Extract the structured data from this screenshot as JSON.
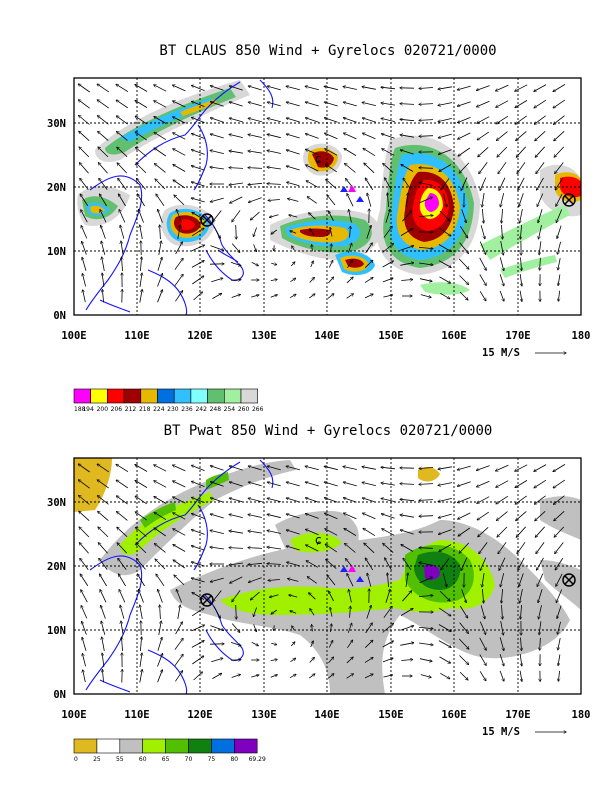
{
  "panels": [
    {
      "id": "claus",
      "title": "BT CLAUS 850 Wind + Gyrelocs 020721/0000",
      "colorbar_labels": [
        "188",
        "194",
        "200",
        "206",
        "212",
        "218",
        "224",
        "230",
        "236",
        "242",
        "248",
        "254",
        "260",
        "266"
      ],
      "colorbar_colors": [
        "#ff00ff",
        "#ffff00",
        "#ff0000",
        "#a00000",
        "#e8b800",
        "#0070e0",
        "#30c0ff",
        "#80ffff",
        "#60c070",
        "#a0f0a0",
        "#d8d8d8"
      ]
    },
    {
      "id": "pwat",
      "title": "BT Pwat 850 Wind + Gyrelocs 020721/0000",
      "colorbar_labels": [
        "0",
        "25",
        "55",
        "60",
        "65",
        "70",
        "75",
        "80",
        "69.29"
      ],
      "colorbar_colors": [
        "#e0b820",
        "#ffffff",
        "#c0c0c0",
        "#a0f000",
        "#50c000",
        "#108010",
        "#0070e0",
        "#8000c0"
      ]
    }
  ],
  "axes": {
    "x_ticks": [
      "100E",
      "110E",
      "120E",
      "130E",
      "140E",
      "150E",
      "160E",
      "170E",
      "180"
    ],
    "y_ticks": [
      "0N",
      "10N",
      "20N",
      "30N"
    ],
    "lon_range": [
      100,
      180
    ],
    "lat_range": [
      0,
      37
    ],
    "vector_scale_label": "15 M/S"
  },
  "markers": {
    "gyre_center": {
      "lon": 120,
      "lat": 14.5
    },
    "gyre_center_east": {
      "lon": 178,
      "lat": 18
    },
    "typhoon_symbols": [
      {
        "lon": 139,
        "lat": 24
      },
      {
        "lon": 156,
        "lat": 19
      }
    ],
    "triangles": [
      {
        "lon": 143,
        "lat": 19.5,
        "color": "#ff00ff"
      },
      {
        "lon": 142,
        "lat": 19,
        "color": "#2020ff"
      },
      {
        "lon": 144,
        "lat": 18,
        "color": "#2020ff"
      }
    ]
  }
}
